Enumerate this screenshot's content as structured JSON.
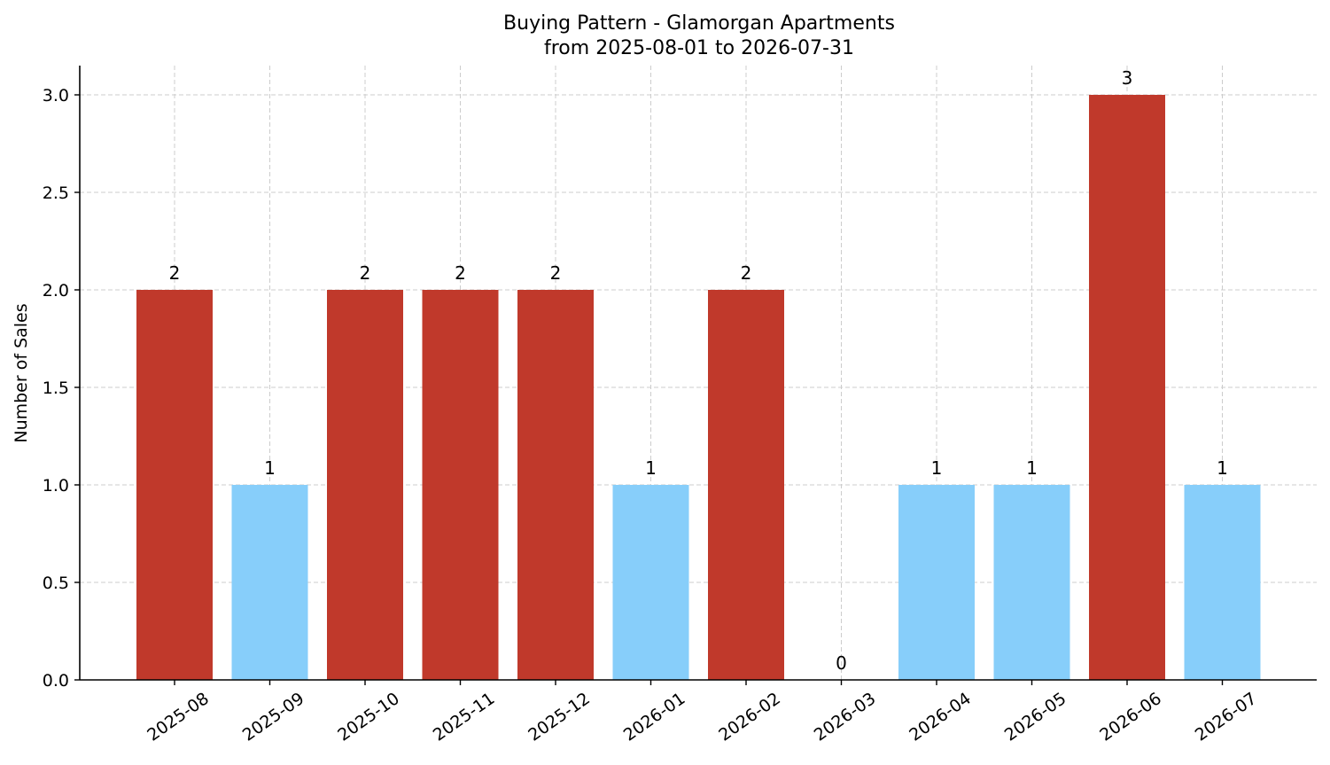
{
  "chart_data": {
    "type": "bar",
    "title": "Buying Pattern - Glamorgan Apartments",
    "subtitle": "from 2025-08-01 to 2026-07-31",
    "xlabel": "",
    "ylabel": "Number of Sales",
    "categories": [
      "2025-08",
      "2025-09",
      "2025-10",
      "2025-11",
      "2025-12",
      "2026-01",
      "2026-02",
      "2026-03",
      "2026-04",
      "2026-05",
      "2026-06",
      "2026-07"
    ],
    "values": [
      2,
      1,
      2,
      2,
      2,
      1,
      2,
      0,
      1,
      1,
      3,
      1
    ],
    "data_labels": [
      "2",
      "1",
      "2",
      "2",
      "2",
      "1",
      "2",
      "0",
      "1",
      "1",
      "3",
      "1"
    ],
    "ylim": [
      0,
      3.15
    ],
    "yticks": [
      0.0,
      0.5,
      1.0,
      1.5,
      2.0,
      2.5,
      3.0
    ],
    "ytick_labels": [
      "0.0",
      "0.5",
      "1.0",
      "1.5",
      "2.0",
      "2.5",
      "3.0"
    ],
    "grid": true,
    "colors": {
      "high": "#c0392b",
      "low": "#87cefa"
    },
    "high_threshold": 2
  }
}
